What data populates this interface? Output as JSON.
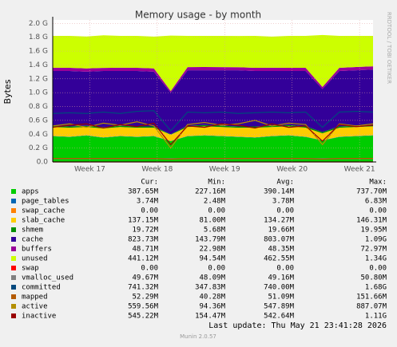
{
  "chart_data": {
    "type": "munin",
    "title": "Memory usage - by month",
    "ylabel": "Bytes",
    "side_label": "RRDTOOL / TOBI OETIKER",
    "last_update": "Last update: Thu May 21 23:41:28 2026",
    "footer": "Munin 2.0.57",
    "ylim": [
      0,
      2.05
    ],
    "yticks": [
      {
        "value": 0,
        "label": "0.0"
      },
      {
        "value": 0.2,
        "label": "0.2 G"
      },
      {
        "value": 0.4,
        "label": "0.4 G"
      },
      {
        "value": 0.6,
        "label": "0.6 G"
      },
      {
        "value": 0.8,
        "label": "0.8 G"
      },
      {
        "value": 1.0,
        "label": "1.0 G"
      },
      {
        "value": 1.2,
        "label": "1.2 G"
      },
      {
        "value": 1.4,
        "label": "1.4 G"
      },
      {
        "value": 1.6,
        "label": "1.6 G"
      },
      {
        "value": 1.8,
        "label": "1.8 G"
      },
      {
        "value": 2.0,
        "label": "2.0 G"
      }
    ],
    "xlim": [
      16.45,
      21.2
    ],
    "xticks": [
      {
        "value": 17,
        "label": "Week 17"
      },
      {
        "value": 18,
        "label": "Week 18"
      },
      {
        "value": 19,
        "label": "Week 19"
      },
      {
        "value": 20,
        "label": "Week 20"
      },
      {
        "value": 21,
        "label": "Week 21"
      }
    ],
    "grid": true,
    "x": [
      16.45,
      16.7,
      16.95,
      17.2,
      17.45,
      17.7,
      17.95,
      18.2,
      18.45,
      18.7,
      18.95,
      19.2,
      19.45,
      19.7,
      19.95,
      20.2,
      20.45,
      20.7,
      20.95,
      21.2
    ],
    "stats_headers": [
      "Cur:",
      "Min:",
      "Avg:",
      "Max:"
    ],
    "series": [
      {
        "name": "apps",
        "kind": "area",
        "color": "#00cc00",
        "stats": [
          "387.65M",
          "227.16M",
          "390.14M",
          "737.70M"
        ],
        "values": [
          0.37,
          0.36,
          0.38,
          0.35,
          0.37,
          0.36,
          0.37,
          0.3,
          0.37,
          0.38,
          0.37,
          0.36,
          0.35,
          0.37,
          0.38,
          0.36,
          0.31,
          0.36,
          0.37,
          0.38
        ]
      },
      {
        "name": "page_tables",
        "kind": "area",
        "color": "#0066b3",
        "stats": [
          "3.74M",
          "2.48M",
          "3.78M",
          "6.83M"
        ],
        "values": [
          0.004,
          0.004,
          0.004,
          0.004,
          0.004,
          0.004,
          0.004,
          0.003,
          0.004,
          0.004,
          0.004,
          0.004,
          0.004,
          0.004,
          0.004,
          0.004,
          0.003,
          0.004,
          0.004,
          0.004
        ]
      },
      {
        "name": "swap_cache",
        "kind": "area",
        "color": "#ff8000",
        "stats": [
          "0.00",
          "0.00",
          "0.00",
          "0.00"
        ],
        "values": [
          0,
          0,
          0,
          0,
          0,
          0,
          0,
          0,
          0,
          0,
          0,
          0,
          0,
          0,
          0,
          0,
          0,
          0,
          0,
          0
        ]
      },
      {
        "name": "slab_cache",
        "kind": "area",
        "color": "#ffcc00",
        "stats": [
          "137.15M",
          "81.00M",
          "134.27M",
          "146.31M"
        ],
        "values": [
          0.13,
          0.13,
          0.12,
          0.13,
          0.13,
          0.13,
          0.12,
          0.09,
          0.13,
          0.13,
          0.13,
          0.13,
          0.14,
          0.13,
          0.13,
          0.13,
          0.1,
          0.13,
          0.13,
          0.13
        ]
      },
      {
        "name": "shmem",
        "kind": "area",
        "color": "#008f00",
        "stats": [
          "19.72M",
          "5.68M",
          "19.66M",
          "19.95M"
        ],
        "values": [
          0.019,
          0.019,
          0.019,
          0.019,
          0.019,
          0.019,
          0.019,
          0.006,
          0.019,
          0.019,
          0.019,
          0.019,
          0.019,
          0.019,
          0.019,
          0.019,
          0.019,
          0.019,
          0.019,
          0.019
        ]
      },
      {
        "name": "cache",
        "kind": "area",
        "color": "#330099",
        "stats": [
          "823.73M",
          "143.79M",
          "803.07M",
          "1.09G"
        ],
        "values": [
          0.79,
          0.8,
          0.78,
          0.81,
          0.79,
          0.8,
          0.79,
          0.6,
          0.8,
          0.79,
          0.8,
          0.81,
          0.8,
          0.79,
          0.78,
          0.8,
          0.62,
          0.8,
          0.8,
          0.8
        ]
      },
      {
        "name": "buffers",
        "kind": "area",
        "color": "#990099",
        "stats": [
          "48.71M",
          "22.98M",
          "48.35M",
          "72.97M"
        ],
        "values": [
          0.047,
          0.046,
          0.048,
          0.045,
          0.047,
          0.046,
          0.047,
          0.025,
          0.046,
          0.047,
          0.046,
          0.045,
          0.046,
          0.047,
          0.046,
          0.046,
          0.03,
          0.046,
          0.047,
          0.047
        ]
      },
      {
        "name": "unused",
        "kind": "area",
        "color": "#ccff00",
        "stats": [
          "441.12M",
          "94.54M",
          "462.55M",
          "1.34G"
        ],
        "values": [
          0.46,
          0.46,
          0.46,
          0.47,
          0.46,
          0.46,
          0.46,
          0.8,
          0.45,
          0.45,
          0.45,
          0.45,
          0.46,
          0.45,
          0.46,
          0.46,
          0.75,
          0.46,
          0.45,
          0.44
        ]
      },
      {
        "name": "swap",
        "kind": "line",
        "color": "#ff0000",
        "stats": [
          "0.00",
          "0.00",
          "0.00",
          "0.00"
        ],
        "values": [
          0,
          0,
          0,
          0,
          0,
          0,
          0,
          0,
          0,
          0,
          0,
          0,
          0,
          0,
          0,
          0,
          0,
          0,
          0,
          0
        ]
      },
      {
        "name": "vmalloc_used",
        "kind": "line",
        "color": "#808080",
        "stats": [
          "49.67M",
          "48.09M",
          "49.16M",
          "50.80M"
        ],
        "values": [
          0.048,
          0.048,
          0.048,
          0.048,
          0.048,
          0.048,
          0.048,
          0.047,
          0.048,
          0.048,
          0.048,
          0.048,
          0.048,
          0.048,
          0.048,
          0.048,
          0.047,
          0.048,
          0.048,
          0.048
        ]
      },
      {
        "name": "committed",
        "kind": "line",
        "color": "#00487d",
        "stats": [
          "741.32M",
          "347.83M",
          "740.00M",
          "1.68G"
        ],
        "values": [
          0.7,
          0.71,
          0.7,
          0.72,
          0.7,
          0.73,
          0.74,
          0.45,
          0.72,
          0.71,
          0.72,
          0.7,
          0.71,
          0.72,
          0.71,
          0.72,
          0.5,
          0.72,
          0.73,
          0.72
        ]
      },
      {
        "name": "mapped",
        "kind": "line",
        "color": "#b35a00",
        "stats": [
          "52.29M",
          "40.28M",
          "51.09M",
          "151.66M"
        ],
        "values": [
          0.05,
          0.05,
          0.05,
          0.05,
          0.05,
          0.05,
          0.05,
          0.04,
          0.05,
          0.05,
          0.05,
          0.05,
          0.05,
          0.05,
          0.05,
          0.05,
          0.04,
          0.05,
          0.05,
          0.05
        ]
      },
      {
        "name": "active",
        "kind": "line",
        "color": "#b38f00",
        "stats": [
          "559.56M",
          "94.36M",
          "547.89M",
          "887.07M"
        ],
        "values": [
          0.52,
          0.55,
          0.5,
          0.56,
          0.53,
          0.58,
          0.52,
          0.2,
          0.54,
          0.57,
          0.53,
          0.55,
          0.6,
          0.52,
          0.56,
          0.54,
          0.25,
          0.55,
          0.52,
          0.55
        ]
      },
      {
        "name": "inactive",
        "kind": "line",
        "color": "#990000",
        "stats": [
          "545.22M",
          "154.47M",
          "542.64M",
          "1.11G"
        ],
        "values": [
          0.5,
          0.53,
          0.55,
          0.49,
          0.54,
          0.51,
          0.56,
          0.25,
          0.52,
          0.5,
          0.55,
          0.53,
          0.49,
          0.55,
          0.5,
          0.52,
          0.3,
          0.54,
          0.51,
          0.53
        ]
      }
    ]
  }
}
